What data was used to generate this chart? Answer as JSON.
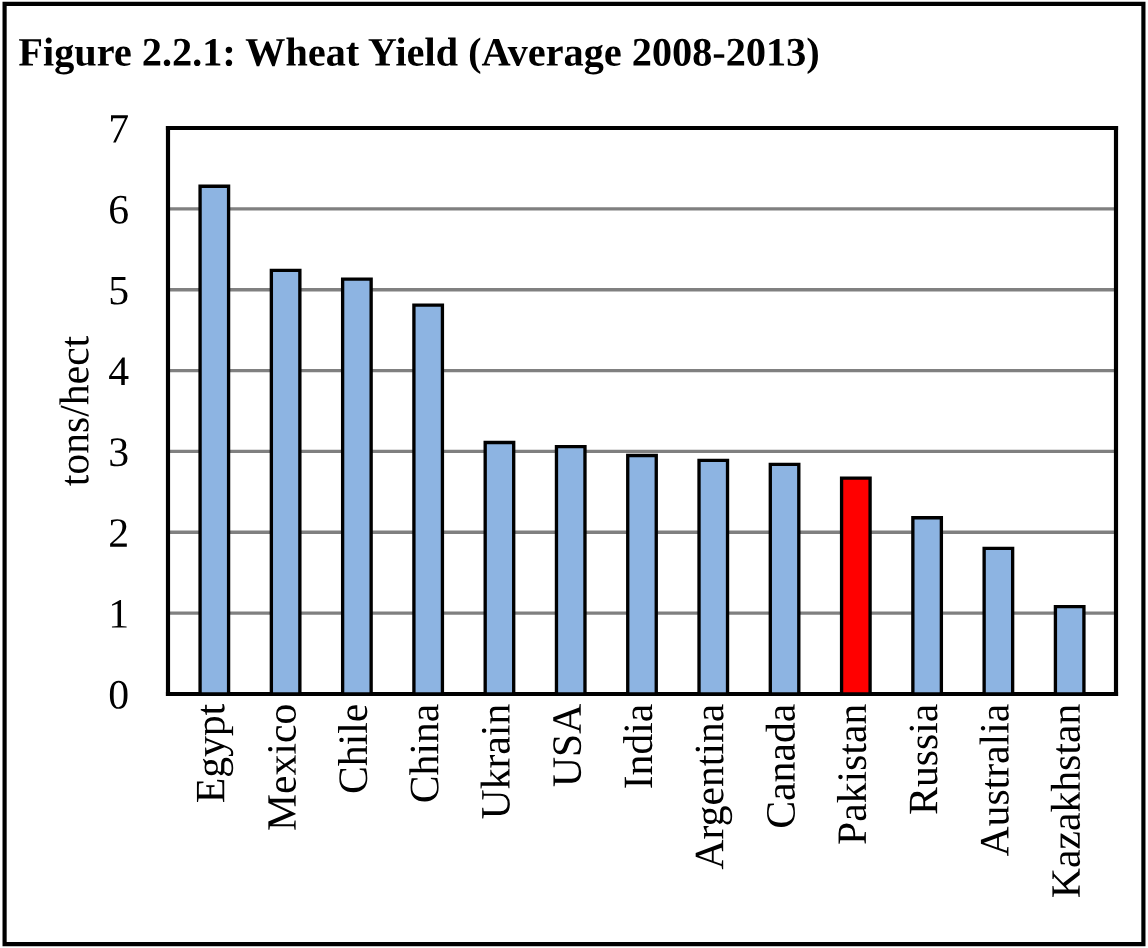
{
  "chart_data": {
    "type": "bar",
    "title": "Figure 2.2.1: Wheat Yield (Average 2008-2013)",
    "ylabel": "tons/hect",
    "categories": [
      "Egypt",
      "Mexico",
      "Chile",
      "China",
      "Ukrain",
      "USA",
      "India",
      "Argentina",
      "Canada",
      "Pakistan",
      "Russia",
      "Australia",
      "Kazakhstan"
    ],
    "values": [
      6.28,
      5.24,
      5.13,
      4.81,
      3.11,
      3.06,
      2.95,
      2.89,
      2.84,
      2.67,
      2.18,
      1.8,
      1.08
    ],
    "colors": [
      "#8db4e2",
      "#8db4e2",
      "#8db4e2",
      "#8db4e2",
      "#8db4e2",
      "#8db4e2",
      "#8db4e2",
      "#8db4e2",
      "#8db4e2",
      "#ff0000",
      "#8db4e2",
      "#8db4e2",
      "#8db4e2"
    ],
    "ylim": [
      0,
      7
    ],
    "yticks": [
      0,
      1,
      2,
      3,
      4,
      5,
      6,
      7
    ],
    "grid": "y"
  }
}
